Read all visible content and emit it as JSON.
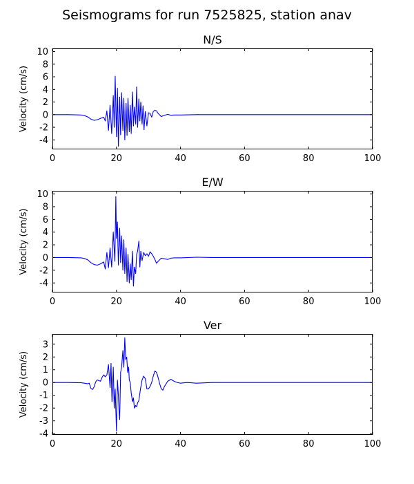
{
  "chart_data": {
    "type": "line",
    "title": "Seismograms for run 7525825, station anav",
    "color": "#0000ff",
    "panels": [
      {
        "title": "N/S",
        "xlabel": "",
        "ylabel": "Velocity (cm/s)",
        "xlim": [
          0,
          100
        ],
        "ylim": [
          -5.5,
          10.5
        ],
        "xticks": [
          0,
          20,
          40,
          60,
          80,
          100
        ],
        "yticks": [
          -4,
          -2,
          0,
          2,
          4,
          6,
          8,
          10
        ],
        "series": [
          {
            "x": [
              0,
              5,
              9,
              10,
              11,
              12,
              13,
              14,
              15,
              16,
              16.5,
              17,
              17.5,
              18,
              18.5,
              19,
              19.3,
              19.6,
              20,
              20.3,
              20.6,
              21,
              21.3,
              21.6,
              22,
              22.3,
              22.6,
              23,
              23.3,
              23.6,
              24,
              24.3,
              24.6,
              25,
              25.3,
              25.6,
              26,
              26.3,
              26.6,
              27,
              27.3,
              27.6,
              28,
              28.3,
              28.6,
              29,
              29.5,
              30,
              30.5,
              31,
              31.5,
              32,
              32.5,
              33,
              34,
              35,
              36,
              37,
              38,
              40,
              45,
              50,
              60,
              70,
              80,
              90,
              100
            ],
            "y": [
              0,
              0,
              -0.05,
              -0.15,
              -0.35,
              -0.7,
              -0.9,
              -0.8,
              -0.6,
              -0.4,
              -1.0,
              0.6,
              -2.5,
              1.5,
              -3.0,
              3.0,
              -2.0,
              6.1,
              -3.5,
              4.2,
              -5.0,
              2.8,
              -3.2,
              3.5,
              -2.5,
              2.6,
              -4.0,
              1.8,
              -3.3,
              2.6,
              -2.7,
              1.5,
              -3.0,
              3.6,
              -1.8,
              1.2,
              -1.5,
              4.4,
              -2.0,
              2.5,
              -1.0,
              2.0,
              -1.5,
              1.4,
              -2.4,
              0.5,
              -1.8,
              0.3,
              0.2,
              -0.4,
              0.5,
              0.7,
              0.6,
              0.2,
              -0.3,
              -0.1,
              0.05,
              -0.1,
              -0.05,
              -0.05,
              0.0,
              0,
              0,
              0,
              0,
              0,
              0
            ]
          }
        ]
      },
      {
        "title": "E/W",
        "xlabel": "",
        "ylabel": "Velocity (cm/s)",
        "xlim": [
          0,
          100
        ],
        "ylim": [
          -5.5,
          10.5
        ],
        "xticks": [
          0,
          20,
          40,
          60,
          80,
          100
        ],
        "yticks": [
          -4,
          -2,
          0,
          2,
          4,
          6,
          8,
          10
        ],
        "series": [
          {
            "x": [
              0,
              5,
              9,
              10,
              11,
              12,
              13,
              14,
              15,
              16,
              16.5,
              17,
              17.5,
              18,
              18.5,
              19,
              19.5,
              19.8,
              20,
              20.3,
              20.6,
              21,
              21.3,
              21.6,
              22,
              22.3,
              22.6,
              23,
              23.3,
              23.6,
              24,
              24.3,
              24.6,
              25,
              25.3,
              25.6,
              26,
              26.3,
              26.6,
              27,
              27.3,
              27.6,
              28,
              28.5,
              29,
              29.5,
              30,
              30.5,
              31,
              31.5,
              32,
              32.5,
              33,
              34,
              35,
              36,
              37,
              38,
              40,
              45,
              50,
              60,
              70,
              80,
              90,
              100
            ],
            "y": [
              0,
              0,
              -0.05,
              -0.15,
              -0.35,
              -0.8,
              -1.1,
              -1.2,
              -1.0,
              -0.7,
              -1.8,
              0.8,
              -1.6,
              1.5,
              -1.5,
              4.0,
              -0.6,
              9.6,
              3.0,
              5.6,
              -1.2,
              4.6,
              -0.8,
              3.4,
              -2.0,
              2.8,
              -2.5,
              1.5,
              -3.8,
              0.5,
              -4.0,
              -1.0,
              -3.5,
              1.0,
              -4.5,
              -1.5,
              -2.5,
              0.5,
              1.0,
              2.6,
              -1.5,
              1.0,
              -0.5,
              0.8,
              0.3,
              0.6,
              0.2,
              0.9,
              0.6,
              0.2,
              -0.3,
              -0.9,
              -0.6,
              -0.1,
              -0.2,
              -0.3,
              -0.1,
              -0.05,
              -0.05,
              0.05,
              0,
              0,
              0,
              0,
              0,
              0
            ]
          }
        ]
      },
      {
        "title": "Ver",
        "xlabel": "",
        "ylabel": "Velocity (cm/s)",
        "xlim": [
          0,
          100
        ],
        "ylim": [
          -4.1,
          3.8
        ],
        "xticks": [
          0,
          20,
          40,
          60,
          80,
          100
        ],
        "yticks": [
          -4,
          -3,
          -2,
          -1,
          0,
          1,
          2,
          3
        ],
        "series": [
          {
            "x": [
              0,
              5,
              9,
              10,
              11,
              11.5,
              12,
              12.5,
              13,
              13.5,
              14,
              15,
              15.5,
              16,
              16.5,
              17,
              17.5,
              18,
              18.3,
              18.6,
              19,
              19.3,
              19.6,
              20,
              20.3,
              20.6,
              20.8,
              21,
              21.3,
              21.6,
              22,
              22.3,
              22.6,
              22.9,
              23.2,
              23.5,
              23.8,
              24,
              24.3,
              24.6,
              25,
              25.3,
              25.6,
              26,
              26.3,
              26.6,
              27,
              27.5,
              28,
              28.5,
              29,
              29.5,
              30,
              30.5,
              31,
              31.5,
              32,
              32.5,
              33,
              33.5,
              34,
              34.5,
              35,
              36,
              37,
              38,
              39,
              40,
              42,
              45,
              50,
              60,
              70,
              80,
              90,
              100
            ],
            "y": [
              0,
              0,
              -0.02,
              -0.05,
              -0.1,
              -0.05,
              -0.45,
              -0.55,
              -0.35,
              0.05,
              0.2,
              0.1,
              0.4,
              0.6,
              0.45,
              0.6,
              1.4,
              -0.4,
              1.5,
              -1.5,
              1.2,
              -2.0,
              -0.5,
              -3.8,
              0.2,
              -1.0,
              -2.2,
              -2.9,
              0.8,
              1.2,
              2.5,
              1.2,
              3.5,
              1.8,
              2.0,
              0.8,
              1.2,
              0.2,
              0.0,
              -0.8,
              -1.5,
              -1.2,
              -2.0,
              -1.8,
              -1.9,
              -1.6,
              -1.4,
              -0.5,
              0.2,
              0.5,
              0.3,
              -0.5,
              -0.5,
              -0.3,
              0.0,
              0.5,
              0.9,
              0.8,
              0.4,
              -0.1,
              -0.5,
              -0.6,
              -0.3,
              0.1,
              0.25,
              0.1,
              0.0,
              -0.05,
              0.0,
              -0.05,
              0,
              0,
              0,
              0,
              0,
              0
            ]
          }
        ]
      }
    ]
  }
}
